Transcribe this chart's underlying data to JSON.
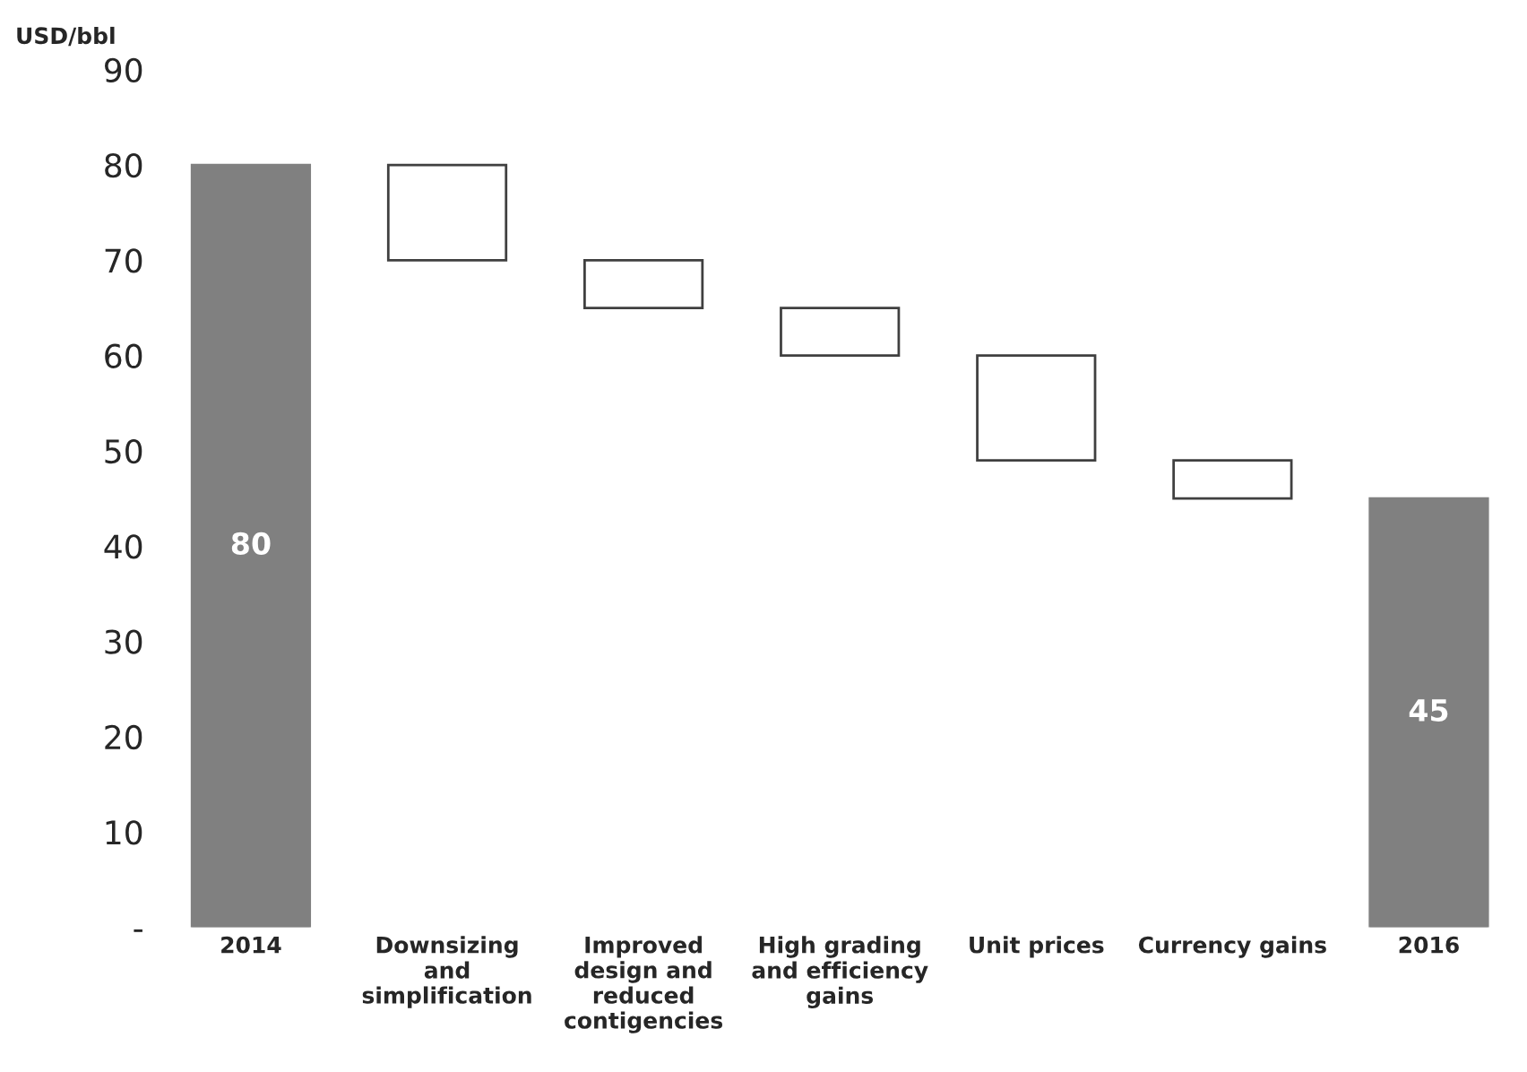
{
  "chart_data": {
    "type": "bar",
    "ylabel": "USD/bbl",
    "categories": [
      "2014",
      "Downsizing\nand\nsimplification",
      "Improved\ndesign and\nreduced\ncontigencies",
      "High grading\nand efficiency\ngains",
      "Unit prices",
      "Currency gains",
      "2016"
    ],
    "values": [
      80,
      -10,
      -5,
      -5,
      -11,
      -4,
      45
    ],
    "base": [
      0,
      80,
      70,
      65,
      60,
      49,
      0
    ],
    "colors": [
      "#808080",
      "#ffffff",
      "#ffffff",
      "#ffffff",
      "#ffffff",
      "#ffffff",
      "#808080"
    ],
    "value_labels": [
      "80",
      null,
      null,
      null,
      null,
      null,
      "45"
    ],
    "ylim": [
      0,
      90
    ],
    "yticks": [
      {
        "value": 0,
        "label": "-"
      },
      10,
      20,
      30,
      40,
      50,
      60,
      70,
      80,
      90
    ],
    "grid": false
  }
}
